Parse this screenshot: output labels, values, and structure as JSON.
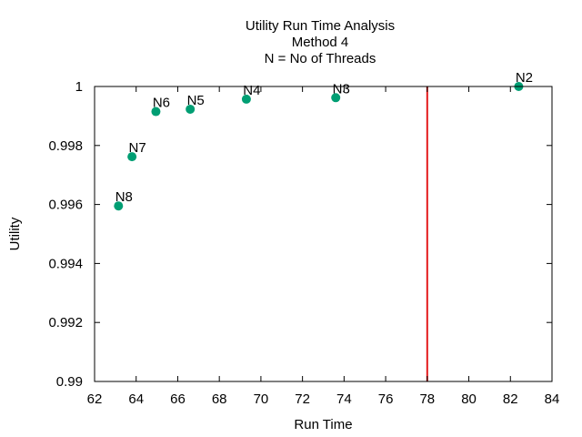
{
  "chart_data": {
    "type": "scatter",
    "title": [
      "Utility Run Time Analysis",
      "Method 4",
      "N = No of Threads"
    ],
    "xlabel": "Run Time",
    "ylabel": "Utility",
    "xlim": [
      62,
      84
    ],
    "ylim": [
      0.99,
      1.0
    ],
    "xticks": [
      62,
      64,
      66,
      68,
      70,
      72,
      74,
      76,
      78,
      80,
      82,
      84
    ],
    "yticks": [
      0.99,
      0.992,
      0.994,
      0.996,
      0.998,
      1
    ],
    "ytick_labels": [
      "0.99",
      "0.992",
      "0.994",
      "0.996",
      "0.998",
      "1"
    ],
    "grid": false,
    "series": [
      {
        "color": "#009e73",
        "points": [
          {
            "x": 63.15,
            "y": 0.99595,
            "label": "N8"
          },
          {
            "x": 63.8,
            "y": 0.99762,
            "label": "N7"
          },
          {
            "x": 64.95,
            "y": 0.99915,
            "label": "N6"
          },
          {
            "x": 66.6,
            "y": 0.99923,
            "label": "N5"
          },
          {
            "x": 69.3,
            "y": 0.99957,
            "label": "N4"
          },
          {
            "x": 73.6,
            "y": 0.99962,
            "label": "N3"
          },
          {
            "x": 82.4,
            "y": 1.0,
            "label": "N2"
          }
        ]
      }
    ],
    "vline": {
      "x": 78,
      "color": "#e41a1c"
    }
  }
}
